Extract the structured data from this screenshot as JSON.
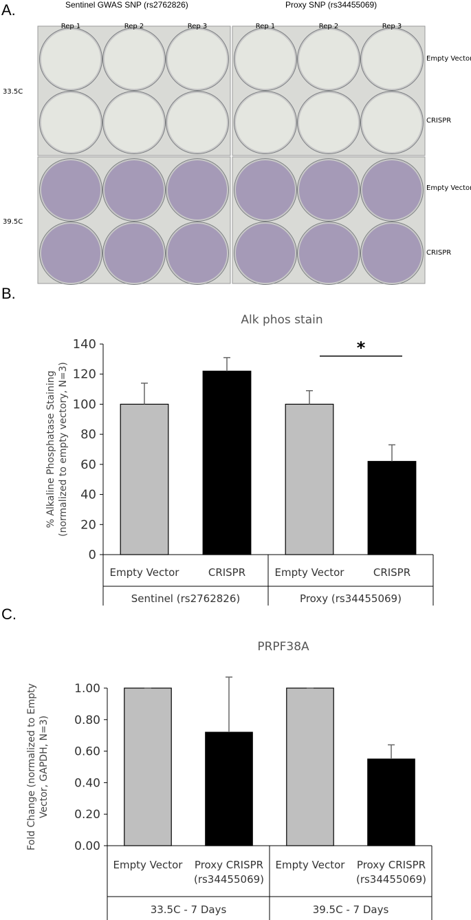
{
  "panel_a": {
    "letter": "A.",
    "sentinel_header": "Sentinel GWAS SNP (rs2762826)",
    "proxy_header": "Proxy SNP (rs34455069)",
    "rep_labels": [
      "Rep 1",
      "Rep 2",
      "Rep 3"
    ],
    "row_labels": [
      "Empty Vector",
      "CRISPR",
      "Empty Vector",
      "CRISPR"
    ],
    "temp_labels": [
      "33.5C",
      "39.5C"
    ],
    "colors": {
      "unstained": "#e4e6e0",
      "stained": "#a59ab7",
      "plate_bg": "#d9dad6"
    }
  },
  "panel_b": {
    "letter": "B."
  },
  "panel_c": {
    "letter": "C."
  },
  "chart_data": [
    {
      "type": "bar",
      "title": "Alk phos stain",
      "ylabel": "% Alkaline Phosphatase Staining (normalized to empty vectory, N=3)",
      "ylabel_lines": [
        "% Alkaline Phosphatase Staining",
        "(normalized to empty vectory, N=3)"
      ],
      "ylim": [
        0,
        140
      ],
      "yticks": [
        "0",
        "20",
        "40",
        "60",
        "80",
        "100",
        "120",
        "140"
      ],
      "categories": [
        "Empty Vector",
        "CRISPR",
        "Empty Vector",
        "CRISPR"
      ],
      "groups": [
        "Sentinel (rs2762826)",
        "Proxy (rs34455069)"
      ],
      "values": [
        100,
        122,
        100,
        62
      ],
      "errors": [
        14,
        9,
        9,
        11
      ],
      "colors": [
        "#bfbfbf",
        "#000000",
        "#bfbfbf",
        "#000000"
      ],
      "annotation": "*",
      "grid": false
    },
    {
      "type": "bar",
      "title": "PRPF38A",
      "ylabel": "Fold Change (normalized to Empty Vector, GAPDH, N=3)",
      "ylabel_lines": [
        "Fold Change (normalized to Empty",
        "Vector, GAPDH, N=3)"
      ],
      "ylim": [
        0,
        1.0
      ],
      "yticks": [
        "0.00",
        "0.20",
        "0.40",
        "0.60",
        "0.80",
        "1.00"
      ],
      "categories": [
        "Empty Vector",
        "Proxy CRISPR (rs34455069)",
        "Empty Vector",
        "Proxy CRISPR (rs34455069)"
      ],
      "category_lines": [
        [
          "Empty Vector"
        ],
        [
          "Proxy CRISPR",
          "(rs34455069)"
        ],
        [
          "Empty Vector"
        ],
        [
          "Proxy CRISPR",
          "(rs34455069)"
        ]
      ],
      "groups": [
        "33.5C - 7 Days",
        "39.5C - 7 Days"
      ],
      "values": [
        1.0,
        0.72,
        1.0,
        0.55
      ],
      "errors": [
        0,
        0.35,
        0,
        0.09
      ],
      "colors": [
        "#bfbfbf",
        "#000000",
        "#bfbfbf",
        "#000000"
      ],
      "grid": false
    }
  ]
}
